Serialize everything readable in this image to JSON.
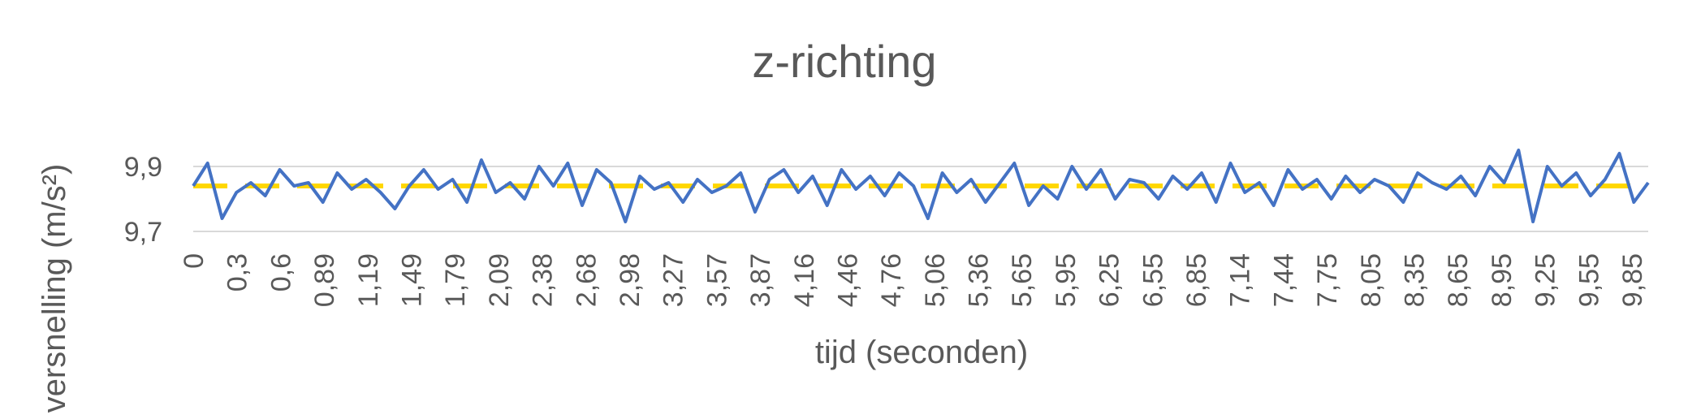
{
  "chart_data": {
    "type": "line",
    "title": "z-richting",
    "xlabel": "tijd (seconden)",
    "ylabel": "versnelling (m/s²)",
    "ylim": [
      9.7,
      9.9
    ],
    "yticks": [
      "9,7",
      "9,9"
    ],
    "xlim": [
      0,
      10.1
    ],
    "xticks": [
      "0",
      "0,3",
      "0,6",
      "0,89",
      "1,19",
      "1,49",
      "1,79",
      "2,09",
      "2,38",
      "2,68",
      "2,98",
      "3,27",
      "3,57",
      "3,87",
      "4,16",
      "4,46",
      "4,76",
      "5,06",
      "5,36",
      "5,65",
      "5,95",
      "6,25",
      "6,55",
      "6,85",
      "7,14",
      "7,44",
      "7,75",
      "8,05",
      "8,35",
      "8,65",
      "8,95",
      "9,25",
      "9,55",
      "9,85"
    ],
    "grid": true,
    "legend": "none",
    "colors": {
      "measured": "#4472C4",
      "mean": "#FFD700",
      "grid": "#D9D9D9",
      "text": "#595959"
    },
    "series": [
      {
        "x": [
          0,
          0.1,
          0.2,
          0.3,
          0.4,
          0.5,
          0.6,
          0.7,
          0.8,
          0.9,
          1.0,
          1.1,
          1.2,
          1.3,
          1.4,
          1.5,
          1.6,
          1.7,
          1.8,
          1.9,
          2.0,
          2.1,
          2.2,
          2.3,
          2.4,
          2.5,
          2.6,
          2.7,
          2.8,
          2.9,
          3.0,
          3.1,
          3.2,
          3.3,
          3.4,
          3.5,
          3.6,
          3.7,
          3.8,
          3.9,
          4.0,
          4.1,
          4.2,
          4.3,
          4.4,
          4.5,
          4.6,
          4.7,
          4.8,
          4.9,
          5.0,
          5.1,
          5.2,
          5.3,
          5.4,
          5.5,
          5.6,
          5.7,
          5.8,
          5.9,
          6.0,
          6.1,
          6.2,
          6.3,
          6.4,
          6.5,
          6.6,
          6.7,
          6.8,
          6.9,
          7.0,
          7.1,
          7.2,
          7.3,
          7.4,
          7.5,
          7.6,
          7.7,
          7.8,
          7.9,
          8.0,
          8.1,
          8.2,
          8.3,
          8.4,
          8.5,
          8.6,
          8.7,
          8.8,
          8.9,
          9.0,
          9.1,
          9.2,
          9.3,
          9.4,
          9.5,
          9.6,
          9.7,
          9.8,
          9.9,
          10.0,
          10.1
        ],
        "values": [
          9.84,
          9.91,
          9.74,
          9.82,
          9.85,
          9.81,
          9.89,
          9.84,
          9.85,
          9.79,
          9.88,
          9.83,
          9.86,
          9.82,
          9.77,
          9.84,
          9.89,
          9.83,
          9.86,
          9.79,
          9.92,
          9.82,
          9.85,
          9.8,
          9.9,
          9.84,
          9.91,
          9.78,
          9.89,
          9.85,
          9.73,
          9.87,
          9.83,
          9.85,
          9.79,
          9.86,
          9.82,
          9.84,
          9.88,
          9.76,
          9.86,
          9.89,
          9.82,
          9.87,
          9.78,
          9.89,
          9.83,
          9.87,
          9.81,
          9.88,
          9.84,
          9.74,
          9.88,
          9.82,
          9.86,
          9.79,
          9.85,
          9.91,
          9.78,
          9.84,
          9.8,
          9.9,
          9.83,
          9.89,
          9.8,
          9.86,
          9.85,
          9.8,
          9.87,
          9.83,
          9.88,
          9.79,
          9.91,
          9.82,
          9.85,
          9.78,
          9.89,
          9.83,
          9.86,
          9.8,
          9.87,
          9.82,
          9.86,
          9.84,
          9.79,
          9.88,
          9.85,
          9.83,
          9.87,
          9.81,
          9.9,
          9.85,
          9.95,
          9.73,
          9.9,
          9.84,
          9.88,
          9.81,
          9.86,
          9.94,
          9.79,
          9.85
        ]
      },
      {
        "x": [
          0,
          10.1
        ],
        "values": [
          9.84,
          9.84
        ],
        "dashed": true
      }
    ]
  }
}
